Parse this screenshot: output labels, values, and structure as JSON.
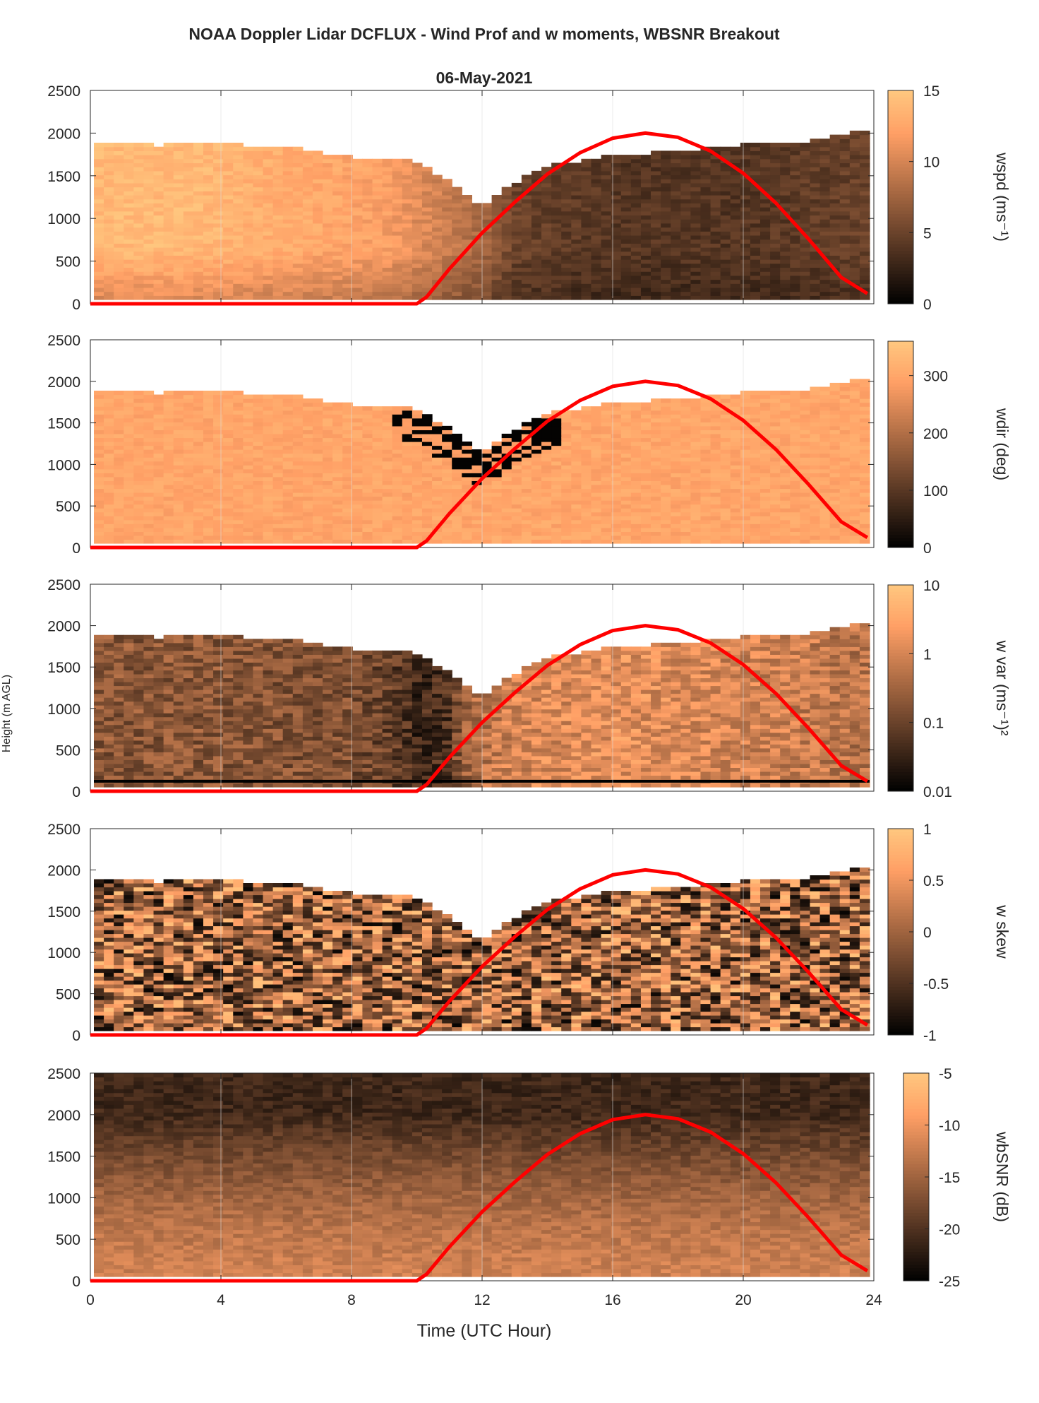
{
  "figure": {
    "title": "NOAA Doppler Lidar DCFLUX - Wind Prof and w moments, WBSNR Breakout",
    "subtitle": "06-May-2021",
    "ylabel": "Height (m AGL)",
    "xlabel": "Time (UTC Hour)",
    "colors": {
      "solar_curve": "#ff0000",
      "grid": "#dddddd",
      "axis": "#262626",
      "colormap": "copper"
    }
  },
  "chart_data": [
    {
      "type": "heatmap",
      "name": "wspd",
      "colorbar_label": "wspd (ms⁻¹)",
      "x_range": [
        0,
        24
      ],
      "x_ticks": [
        0,
        4,
        8,
        12,
        16,
        20,
        24
      ],
      "y_range": [
        0,
        2500
      ],
      "y_ticks": [
        0,
        500,
        1000,
        1500,
        2000,
        2500
      ],
      "clim": [
        0,
        15
      ],
      "colorbar_ticks": [
        {
          "value": 0,
          "label": "0"
        },
        {
          "value": 5,
          "label": "5"
        },
        {
          "value": 10,
          "label": "10"
        },
        {
          "value": 15,
          "label": "15"
        }
      ],
      "top_profile": {
        "hours": [
          0,
          2,
          4,
          6,
          8,
          9,
          10,
          11,
          12,
          13,
          14,
          16,
          18,
          20,
          22,
          23.8
        ],
        "heights": [
          1880,
          1850,
          1860,
          1830,
          1700,
          1700,
          1650,
          1400,
          1100,
          1400,
          1600,
          1720,
          1780,
          1850,
          1900,
          2050
        ]
      },
      "profile_by_hour": {
        "hours": [
          0,
          3,
          6,
          9,
          10.5,
          12,
          13,
          16,
          20,
          24
        ],
        "values": [
          14,
          14,
          13,
          12,
          10,
          8,
          5,
          4,
          4,
          5
        ]
      },
      "grid": true
    },
    {
      "type": "heatmap",
      "name": "wdir",
      "colorbar_label": "wdir (deg)",
      "x_range": [
        0,
        24
      ],
      "x_ticks": [
        0,
        4,
        8,
        12,
        16,
        20,
        24
      ],
      "y_range": [
        0,
        2500
      ],
      "y_ticks": [
        0,
        500,
        1000,
        1500,
        2000,
        2500
      ],
      "clim": [
        0,
        360
      ],
      "colorbar_ticks": [
        {
          "value": 0,
          "label": "0"
        },
        {
          "value": 100,
          "label": "100"
        },
        {
          "value": 200,
          "label": "200"
        },
        {
          "value": 300,
          "label": "300"
        }
      ],
      "top_profile": {
        "hours": [
          0,
          2,
          4,
          6,
          8,
          9,
          10,
          11,
          12,
          13,
          14,
          16,
          18,
          20,
          22,
          23.8
        ],
        "heights": [
          1880,
          1850,
          1860,
          1830,
          1700,
          1700,
          1650,
          1400,
          1100,
          1400,
          1600,
          1720,
          1780,
          1850,
          1900,
          2050
        ]
      },
      "dominant_value_deg": 300,
      "low_direction_region": {
        "hours": [
          9.2,
          14.5
        ],
        "value_deg": 5
      },
      "grid": true
    },
    {
      "type": "heatmap",
      "name": "w var",
      "colorbar_label": "w var (ms⁻¹)²",
      "color_scale": "log",
      "x_range": [
        0,
        24
      ],
      "x_ticks": [
        0,
        4,
        8,
        12,
        16,
        20,
        24
      ],
      "y_range": [
        0,
        2500
      ],
      "y_ticks": [
        0,
        500,
        1000,
        1500,
        2000,
        2500
      ],
      "clim": [
        0.01,
        10
      ],
      "colorbar_ticks": [
        {
          "value": 0.01,
          "label": "0.01"
        },
        {
          "value": 0.1,
          "label": "0.1"
        },
        {
          "value": 1,
          "label": "1"
        },
        {
          "value": 10,
          "label": "10"
        }
      ],
      "top_profile": {
        "hours": [
          0,
          2,
          4,
          6,
          8,
          9,
          10,
          11,
          12,
          13,
          14,
          16,
          18,
          20,
          22,
          23.8
        ],
        "heights": [
          1880,
          1850,
          1860,
          1830,
          1700,
          1700,
          1650,
          1400,
          1100,
          1400,
          1600,
          1720,
          1780,
          1850,
          1900,
          2050
        ]
      },
      "profile_by_hour": {
        "hours": [
          0,
          4,
          8,
          10,
          11,
          13,
          16,
          20,
          24
        ],
        "values": [
          0.2,
          0.2,
          0.15,
          0.04,
          0.05,
          1.0,
          1.5,
          1.0,
          0.5
        ]
      },
      "bottom_line_height": 120,
      "grid": true
    },
    {
      "type": "heatmap",
      "name": "w skew",
      "colorbar_label": "w skew",
      "x_range": [
        0,
        24
      ],
      "x_ticks": [
        0,
        4,
        8,
        12,
        16,
        20,
        24
      ],
      "y_range": [
        0,
        2500
      ],
      "y_ticks": [
        0,
        500,
        1000,
        1500,
        2000,
        2500
      ],
      "clim": [
        -1,
        1
      ],
      "colorbar_ticks": [
        {
          "value": -1,
          "label": "-1"
        },
        {
          "value": -0.5,
          "label": "-0.5"
        },
        {
          "value": 0,
          "label": "0"
        },
        {
          "value": 0.5,
          "label": "0.5"
        },
        {
          "value": 1,
          "label": "1"
        }
      ],
      "top_profile": {
        "hours": [
          0,
          2,
          4,
          6,
          8,
          9,
          10,
          11,
          12,
          13,
          14,
          16,
          18,
          20,
          22,
          23.8
        ],
        "heights": [
          1880,
          1850,
          1860,
          1830,
          1700,
          1700,
          1650,
          1400,
          1100,
          1400,
          1600,
          1720,
          1780,
          1850,
          1900,
          2050
        ]
      },
      "grid": true
    },
    {
      "type": "heatmap",
      "name": "wbSNR",
      "colorbar_label": "wbSNR (dB)",
      "x_range": [
        0,
        24
      ],
      "x_ticks": [
        0,
        4,
        8,
        12,
        16,
        20,
        24
      ],
      "y_range": [
        0,
        2500
      ],
      "y_ticks": [
        0,
        500,
        1000,
        1500,
        2000,
        2500
      ],
      "clim": [
        -25,
        -5
      ],
      "colorbar_ticks": [
        {
          "value": -25,
          "label": "-25"
        },
        {
          "value": -20,
          "label": "-20"
        },
        {
          "value": -15,
          "label": "-15"
        },
        {
          "value": -10,
          "label": "-10"
        },
        {
          "value": -5,
          "label": "-5"
        }
      ],
      "snr_low_dB": -12,
      "snr_top_dB": -21,
      "grid": true
    }
  ],
  "solar_curve": {
    "hours": [
      0,
      1,
      2,
      3,
      4,
      5,
      6,
      7,
      8,
      9,
      10,
      10.3,
      11,
      12,
      13,
      14,
      15,
      16,
      17,
      18,
      19,
      20,
      21,
      22,
      23,
      23.8
    ],
    "heights": [
      0,
      0,
      0,
      0,
      0,
      0,
      0,
      0,
      0,
      0,
      0,
      80,
      410,
      830,
      1190,
      1520,
      1770,
      1940,
      2000,
      1950,
      1790,
      1530,
      1180,
      760,
      310,
      120
    ]
  }
}
